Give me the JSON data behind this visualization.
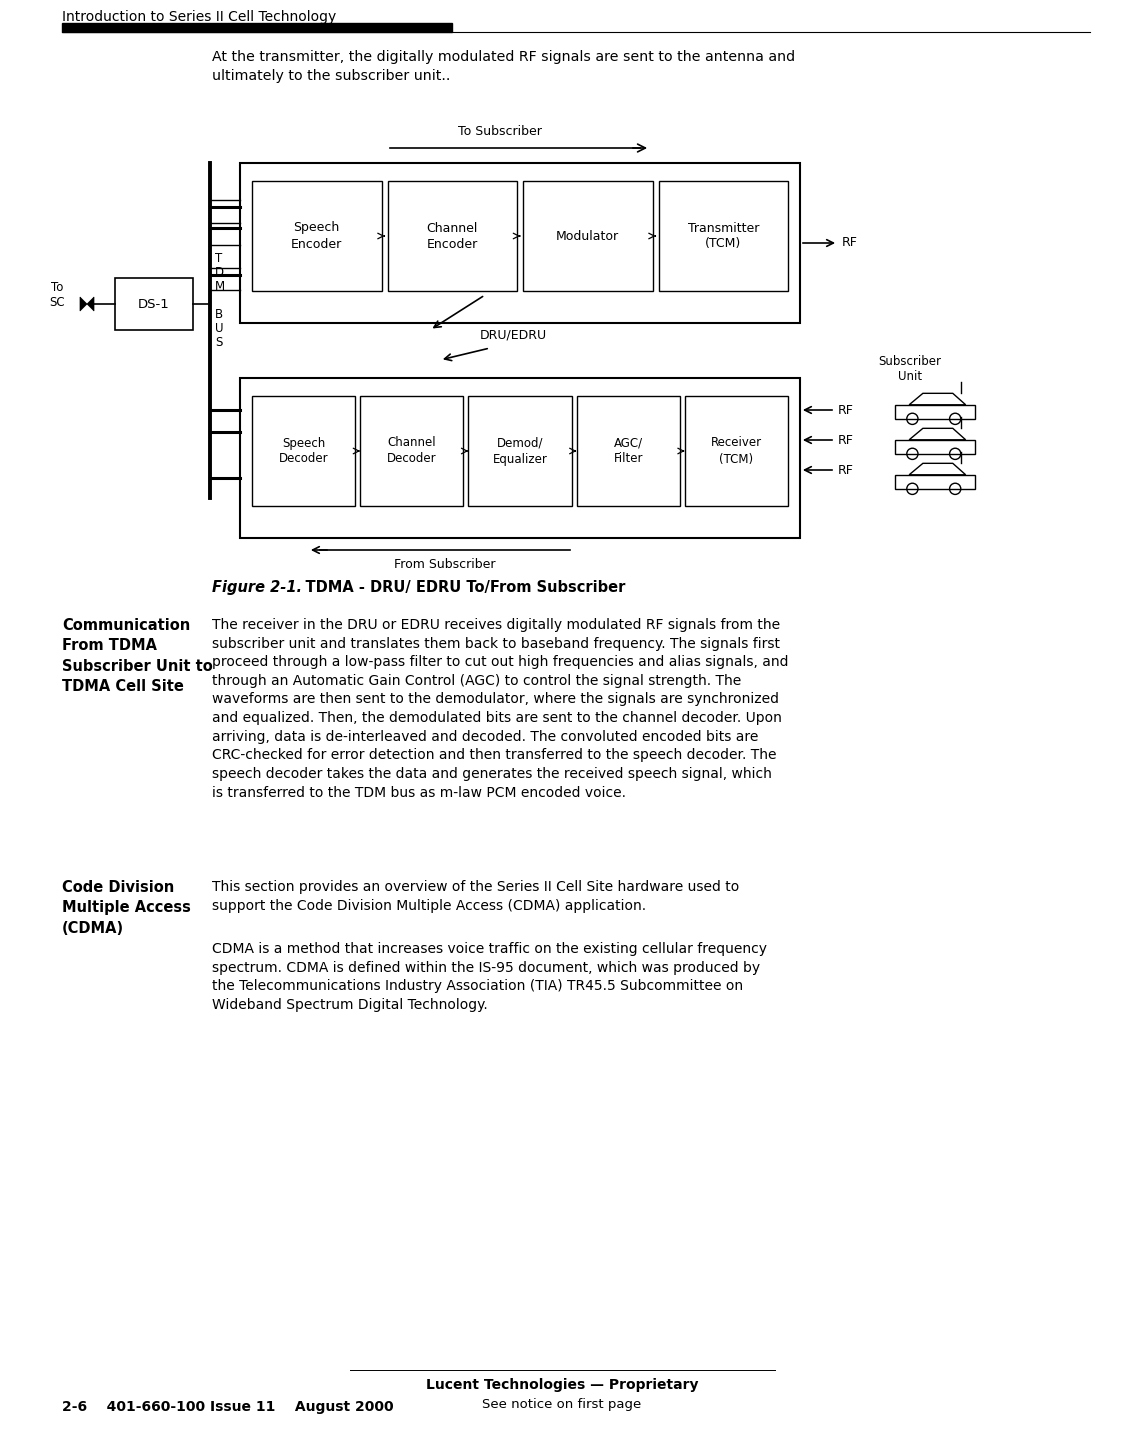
{
  "title_text": "Introduction to Series II Cell Technology",
  "bg_color": "#ffffff",
  "body_text_intro": "At the transmitter, the digitally modulated RF signals are sent to the antenna and\nultimately to the subscriber unit..",
  "figure_caption_italic": "Figure 2-1.",
  "figure_caption_bold": "    TDMA - DRU/ EDRU To/From Subscriber",
  "section1_heading": "Communication\nFrom TDMA\nSubscriber Unit to\nTDMA Cell Site",
  "section1_body": "The receiver in the DRU or EDRU receives digitally modulated RF signals from the\nsubscriber unit and translates them back to baseband frequency. The signals first\nproceed through a low-pass filter to cut out high frequencies and alias signals, and\nthrough an Automatic Gain Control (AGC) to control the signal strength. The\nwaveforms are then sent to the demodulator, where the signals are synchronized\nand equalized. Then, the demodulated bits are sent to the channel decoder. Upon\narriving, data is de-interleaved and decoded. The convoluted encoded bits are\nCRC-checked for error detection and then transferred to the speech decoder. The\nspeech decoder takes the data and generates the received speech signal, which\nis transferred to the TDM bus as m-law PCM encoded voice.",
  "section2_heading": "Code Division\nMultiple Access\n(CDMA)",
  "section2_body1": "This section provides an overview of the Series II Cell Site hardware used to\nsupport the Code Division Multiple Access (CDMA) application.",
  "section2_body2": "CDMA is a method that increases voice traffic on the existing cellular frequency\nspectrum. CDMA is defined within the IS-95 document, which was produced by\nthe Telecommunications Industry Association (TIA) TR45.5 Subcommittee on\nWideband Spectrum Digital Technology.",
  "footer_center1": "Lucent Technologies — Proprietary",
  "footer_center2": "See notice on first page",
  "footer_left": "2-6    401-660-100 Issue 11    August 2000",
  "top_blocks": [
    "Speech\nEncoder",
    "Channel\nEncoder",
    "Modulator",
    "Transmitter\n(TCM)"
  ],
  "bot_blocks": [
    "Speech\nDecoder",
    "Channel\nDecoder",
    "Demod/\nEqualizer",
    "AGC/\nFilter",
    "Receiver\n(TCM)"
  ],
  "tdm_label": "T\nD\nM\n\nB\nU\nS",
  "ds1_label": "DS-1",
  "to_sc_label": "To\nSC",
  "to_subscriber_label": "To Subscriber",
  "from_subscriber_label": "From Subscriber",
  "dru_edru_label": "DRU/EDRU",
  "subscriber_unit_label": "Subscriber\nUnit",
  "rf_label": "RF"
}
